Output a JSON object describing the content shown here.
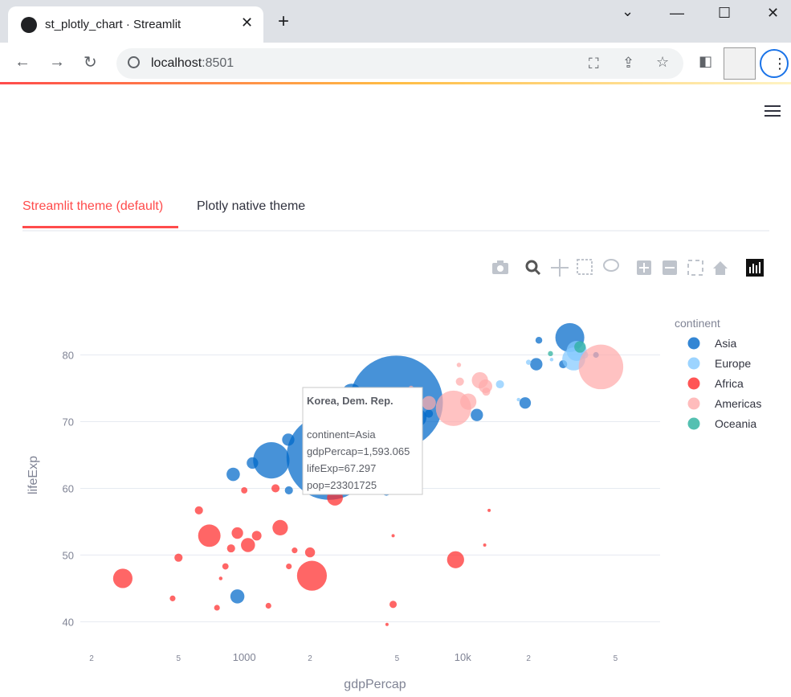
{
  "browser": {
    "tab_title": "st_plotly_chart · Streamlit",
    "tab_close": "✕",
    "new_tab": "+",
    "url_host": "localhost",
    "url_port": ":8501",
    "min_label": "—",
    "max_label": "☐",
    "close_label": "✕",
    "dropdown": "⌄"
  },
  "app": {
    "tabs": [
      {
        "label": "Streamlit theme (default)"
      },
      {
        "label": "Plotly native theme"
      }
    ]
  },
  "colors": {
    "accent": "#ff4b4b",
    "Asia": "#0068c9",
    "Europe": "#83c9ff",
    "Africa": "#ff2b2b",
    "Americas": "#ffabab",
    "Oceania": "#29b09d"
  },
  "chart_data": {
    "type": "scatter",
    "x_scale": "log",
    "xlabel": "gdpPercap",
    "ylabel": "lifeExp",
    "xlim": [
      150,
      80000
    ],
    "ylim": [
      38,
      85
    ],
    "y_ticks": [
      40,
      50,
      60,
      70,
      80
    ],
    "x_tick_labels": [
      "2",
      "5",
      "1000",
      "2",
      "5",
      "10k",
      "2",
      "5"
    ],
    "legend_title": "continent",
    "legend": [
      "Asia",
      "Europe",
      "Africa",
      "Americas",
      "Oceania"
    ],
    "tooltip": {
      "title": "Korea, Dem. Rep.",
      "lines": [
        "continent=Asia",
        "gdpPercap=1,593.065",
        "lifeExp=67.297",
        "pop=23301725"
      ]
    },
    "series": [
      {
        "name": "Asia",
        "points": [
          [
            4960,
            72.9,
            1318
          ],
          [
            2450,
            64.7,
            1110
          ],
          [
            1330,
            64.2,
            200
          ],
          [
            30900,
            82.6,
            127
          ],
          [
            1590,
            67.3,
            23
          ],
          [
            2450,
            73.5,
            50
          ],
          [
            6200,
            70.6,
            50
          ],
          [
            11600,
            71.0,
            23
          ],
          [
            890,
            62.1,
            27
          ],
          [
            1090,
            63.8,
            20
          ],
          [
            1600,
            59.7,
            10
          ],
          [
            930,
            43.8,
            30
          ],
          [
            28800,
            78.6,
            10
          ],
          [
            21700,
            78.6,
            23
          ],
          [
            19300,
            72.8,
            20
          ],
          [
            4470,
            59.5,
            10
          ],
          [
            40700,
            80.0,
            5
          ],
          [
            3100,
            74.2,
            60
          ],
          [
            3540,
            70.6,
            14
          ],
          [
            7000,
            71.2,
            10
          ],
          [
            2800,
            65.0,
            5
          ],
          [
            22300,
            82.2,
            7
          ]
        ]
      },
      {
        "name": "Europe",
        "points": [
          [
            32200,
            79.4,
            80
          ],
          [
            33200,
            80.6,
            61
          ],
          [
            14800,
            75.6,
            10
          ],
          [
            18000,
            73.3,
            2
          ],
          [
            20000,
            78.9,
            4
          ],
          [
            25500,
            79.3,
            2
          ],
          [
            36100,
            80.0,
            8
          ]
        ]
      },
      {
        "name": "Africa",
        "points": [
          [
            2040,
            46.9,
            135
          ],
          [
            692,
            52.9,
            76
          ],
          [
            278,
            46.5,
            57
          ],
          [
            9270,
            49.3,
            44
          ],
          [
            2600,
            58.6,
            38
          ],
          [
            1460,
            54.1,
            36
          ],
          [
            1040,
            51.5,
            30
          ],
          [
            1390,
            60.0,
            10
          ],
          [
            870,
            51.0,
            10
          ],
          [
            620,
            56.7,
            10
          ],
          [
            930,
            53.3,
            20
          ],
          [
            2000,
            50.4,
            15
          ],
          [
            500,
            49.6,
            10
          ],
          [
            4800,
            42.6,
            8
          ],
          [
            1140,
            52.9,
            14
          ],
          [
            1000,
            59.7,
            6
          ],
          [
            750,
            42.1,
            5
          ],
          [
            1290,
            42.4,
            5
          ],
          [
            470,
            43.5,
            5
          ],
          [
            2050,
            63.1,
            5
          ],
          [
            1700,
            50.7,
            5
          ],
          [
            1600,
            48.3,
            5
          ],
          [
            820,
            48.3,
            6
          ],
          [
            13200,
            56.7,
            1
          ],
          [
            12600,
            51.5,
            1
          ],
          [
            4800,
            52.9,
            1
          ],
          [
            4500,
            39.6,
            1
          ],
          [
            780,
            46.5,
            2
          ]
        ]
      },
      {
        "name": "Americas",
        "points": [
          [
            42900,
            78.2,
            301
          ],
          [
            9070,
            72.0,
            190
          ],
          [
            11980,
            76.2,
            40
          ],
          [
            7000,
            72.8,
            29
          ],
          [
            12800,
            74.5,
            10
          ],
          [
            10600,
            73.0,
            40
          ],
          [
            5800,
            75.0,
            4
          ],
          [
            9600,
            78.5,
            3
          ],
          [
            12700,
            75.3,
            28
          ],
          [
            9700,
            76.0,
            10
          ],
          [
            2080,
            60.9,
            8
          ],
          [
            5000,
            71.9,
            10
          ],
          [
            6000,
            73.9,
            5
          ]
        ]
      },
      {
        "name": "Oceania",
        "points": [
          [
            34400,
            81.2,
            20
          ],
          [
            25200,
            80.2,
            4
          ]
        ]
      }
    ]
  }
}
